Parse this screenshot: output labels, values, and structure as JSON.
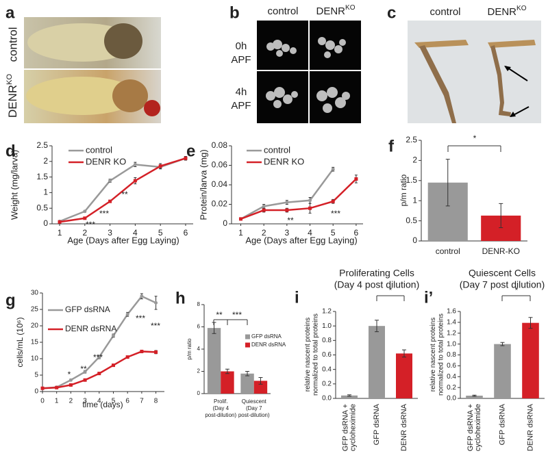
{
  "images": [
    {
      "panel": "a",
      "row_labels": [
        "control",
        {
          "base": "DENR",
          "sup": "KO"
        }
      ]
    },
    {
      "panel": "b",
      "column_labels": [
        "control",
        {
          "base": "DENR",
          "sup": "KO"
        }
      ],
      "row_labels": [
        [
          "0h",
          "APF"
        ],
        [
          "4h",
          "APF"
        ]
      ]
    },
    {
      "panel": "c",
      "column_labels": [
        "control",
        {
          "base": "DENR",
          "sup": "KO"
        }
      ]
    }
  ],
  "chart_data": [
    {
      "panel": "d",
      "type": "line",
      "x": [
        1,
        2,
        3,
        4,
        5,
        6
      ],
      "xlim": [
        0.7,
        6.3
      ],
      "xticks": [
        1,
        2,
        3,
        4,
        5,
        6
      ],
      "ylim": [
        0,
        2.5
      ],
      "yticks": [
        0,
        0.5,
        1,
        1.5,
        2,
        2.5
      ],
      "x_label": "Age (Days after Egg Laying)",
      "y_label": "Weight (mg/larva)",
      "legend": "top-left",
      "series": [
        {
          "name": "control",
          "color": "#999999",
          "values": [
            0.08,
            0.4,
            1.38,
            1.9,
            1.82,
            2.1
          ],
          "errors": [
            0.02,
            0.03,
            0.05,
            0.07,
            0.06,
            0.05
          ]
        },
        {
          "name": "DENR KO",
          "color": "#d42027",
          "values": [
            0.06,
            0.18,
            0.72,
            1.38,
            1.85,
            2.1
          ],
          "errors": [
            0.02,
            0.03,
            0.04,
            0.1,
            0.08,
            0.06
          ]
        }
      ],
      "annotations": [
        "***",
        "***",
        "**"
      ]
    },
    {
      "panel": "e",
      "type": "line",
      "x": [
        1,
        2,
        3,
        4,
        5,
        6
      ],
      "xlim": [
        0.6,
        6.3
      ],
      "xticks": [
        1,
        2,
        3,
        4,
        5,
        6
      ],
      "ylim": [
        0,
        0.08
      ],
      "yticks": [
        0,
        0.02,
        0.04,
        0.06,
        0.08
      ],
      "x_label": "Age (Days after Egg Laying)",
      "y_label": "Protein/larva (mg)",
      "legend": "top-left",
      "series": [
        {
          "name": "control",
          "color": "#999999",
          "values": [
            0.005,
            0.018,
            0.022,
            0.024,
            0.056,
            null
          ],
          "errors": [
            0.001,
            0.002,
            0.002,
            0.003,
            0.002,
            null
          ]
        },
        {
          "name": "DENR KO",
          "color": "#d42027",
          "values": [
            0.005,
            0.014,
            0.014,
            0.016,
            0.023,
            0.046
          ],
          "errors": [
            0.001,
            0.002,
            0.002,
            0.005,
            0.002,
            0.004
          ]
        }
      ],
      "annotations": [
        "**",
        "***"
      ]
    },
    {
      "panel": "f",
      "type": "bar",
      "categories": [
        "control",
        "DENR-KO"
      ],
      "values": [
        1.45,
        0.63
      ],
      "errors": [
        0.58,
        0.3
      ],
      "colors": [
        "#999999",
        "#d42027"
      ],
      "ylim": [
        0,
        2.5
      ],
      "yticks": [
        0,
        0.5,
        1,
        1.5,
        2,
        2.5
      ],
      "y_label": "p/m ratio",
      "annotations": [
        "*"
      ]
    },
    {
      "panel": "g",
      "type": "line",
      "x": [
        0,
        1,
        2,
        3,
        4,
        5,
        6,
        7,
        8
      ],
      "xlim": [
        0,
        8.6
      ],
      "xticks": [
        0,
        1,
        2,
        3,
        4,
        5,
        6,
        7,
        8
      ],
      "ylim": [
        0,
        30
      ],
      "yticks": [
        0,
        5,
        10,
        15,
        20,
        25,
        30
      ],
      "x_label": "time (days)",
      "y_label": "cells/mL (10⁶)",
      "legend": "top-left",
      "series": [
        {
          "name": "GFP dsRNA",
          "color": "#999999",
          "values": [
            1,
            1.3,
            3.5,
            6,
            10.5,
            17,
            23.5,
            29,
            27
          ],
          "errors": [
            0.1,
            0.1,
            0.3,
            0.4,
            0.5,
            0.5,
            0.6,
            0.8,
            2
          ]
        },
        {
          "name": "DENR dsRNA",
          "color": "#d42027",
          "values": [
            1,
            1.2,
            2,
            3.5,
            5.5,
            8,
            10.5,
            12.2,
            12
          ],
          "errors": [
            0.1,
            0.1,
            0.2,
            0.2,
            0.3,
            0.3,
            0.3,
            0.4,
            0.5
          ]
        }
      ],
      "annotations": [
        "*",
        "**",
        "***",
        "***",
        "***"
      ]
    },
    {
      "panel": "h",
      "type": "bar",
      "categories": [
        [
          "Prolif.",
          "(Day 4",
          "post-dilution)"
        ],
        [
          "Quiescent",
          "(Day 7",
          "post-dilution)"
        ]
      ],
      "ylim": [
        0,
        8
      ],
      "yticks": [
        0,
        2,
        4,
        6,
        8
      ],
      "y_label": "p/m ratio",
      "legend": "right",
      "series": [
        {
          "name": "GFP dsRNA",
          "color": "#999999",
          "values": [
            5.9,
            1.8
          ],
          "errors": [
            0.5,
            0.2
          ]
        },
        {
          "name": "DENR dsRNA",
          "color": "#d42027",
          "values": [
            2.0,
            1.15
          ],
          "errors": [
            0.2,
            0.3
          ]
        }
      ],
      "annotations": [
        "**",
        "***"
      ]
    },
    {
      "panel": "i",
      "type": "bar",
      "title": "Proliferating Cells",
      "subtitle": "(Day 4 post dilution)",
      "categories": [
        [
          "GFP dsRNA +",
          "cycloheximide"
        ],
        [
          "GFP dsRNA"
        ],
        [
          "DENR dsRNA"
        ]
      ],
      "values": [
        0.04,
        1.0,
        0.62
      ],
      "errors": [
        0.01,
        0.08,
        0.05
      ],
      "colors": [
        "#999999",
        "#999999",
        "#d42027"
      ],
      "ylim": [
        0,
        1.2
      ],
      "yticks": [
        {
          "value": 0,
          "label": "0.0"
        },
        0.2,
        0.4,
        0.6,
        0.8,
        {
          "value": 1,
          "label": "1.0"
        },
        1.2
      ],
      "y_label": [
        "relative nascent proteins",
        "normalized to total proteins"
      ],
      "annotations": [
        "*"
      ]
    },
    {
      "panel": "i’",
      "type": "bar",
      "title": "Quiescent Cells",
      "subtitle": "(Day 7 post dilution)",
      "categories": [
        [
          "GFP dsRNA +",
          "cycloheximide"
        ],
        [
          "GFP dsRNA"
        ],
        [
          "DENR dsRNA"
        ]
      ],
      "values": [
        0.05,
        1.0,
        1.39
      ],
      "errors": [
        0.01,
        0.03,
        0.1
      ],
      "colors": [
        "#999999",
        "#999999",
        "#d42027"
      ],
      "ylim": [
        0,
        1.6
      ],
      "yticks": [
        {
          "value": 0,
          "label": "0.0"
        },
        0.2,
        0.4,
        0.6,
        0.8,
        {
          "value": 1,
          "label": "1.0"
        },
        1.2,
        1.4,
        1.6
      ],
      "y_label": [
        "relative nascent proteins",
        "normalized to total proteins"
      ],
      "annotations": [
        "*"
      ]
    }
  ]
}
